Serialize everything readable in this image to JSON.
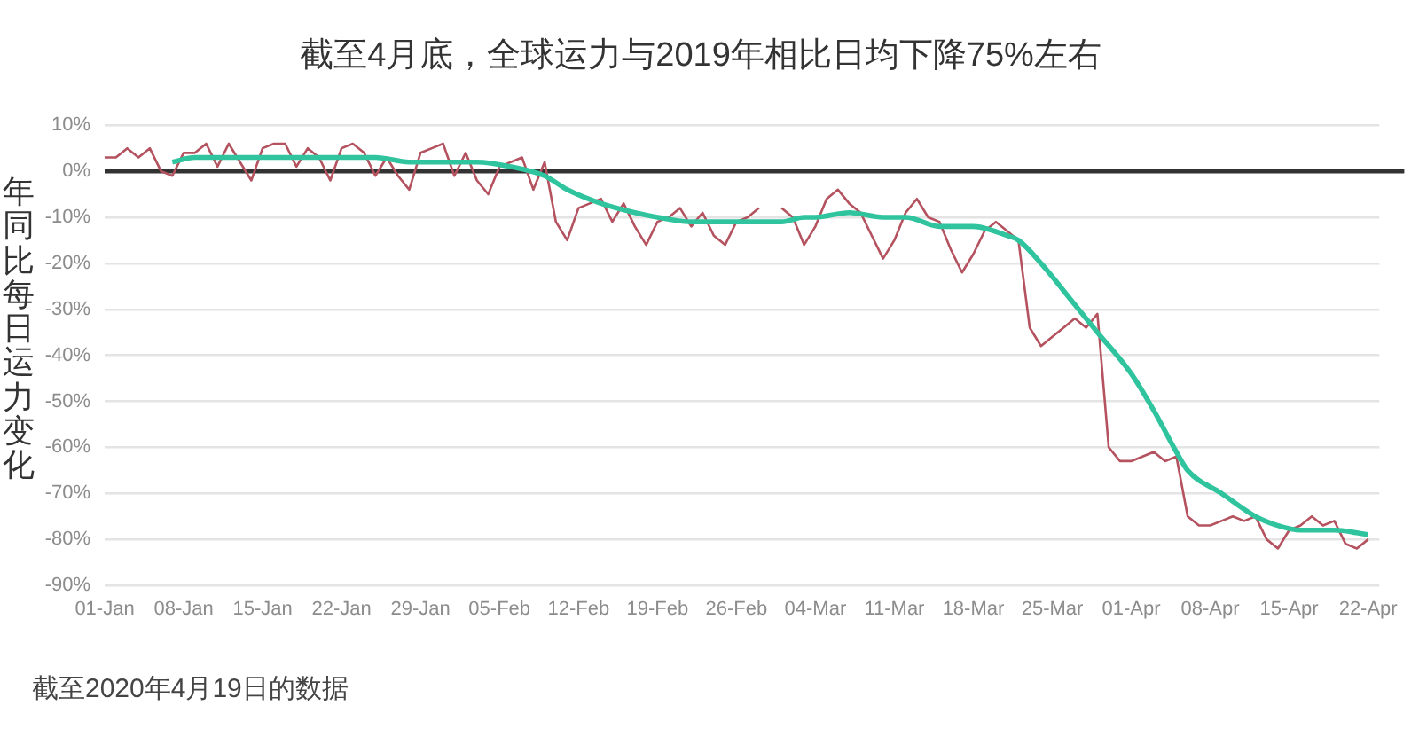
{
  "chart_data": {
    "type": "line",
    "title": "截至4月底，全球运力与2019年相比日均下降75%左右",
    "ylabel": "年同比每日运力变化",
    "annotations": [
      "截至2020年4月19日的数据"
    ],
    "x": [
      "--01-01",
      "--01-02",
      "--01-03",
      "--01-04",
      "--01-05",
      "--01-06",
      "--01-07",
      "--01-08",
      "--01-09",
      "--01-10",
      "--01-11",
      "--01-12",
      "--01-13",
      "--01-14",
      "--01-15",
      "--01-16",
      "--01-17",
      "--01-18",
      "--01-19",
      "--01-20",
      "--01-21",
      "--01-22",
      "--01-23",
      "--01-24",
      "--01-25",
      "--01-26",
      "--01-27",
      "--01-28",
      "--01-29",
      "--01-30",
      "--01-31",
      "--02-01",
      "--02-02",
      "--02-03",
      "--02-04",
      "--02-05",
      "--02-06",
      "--02-07",
      "--02-08",
      "--02-09",
      "--02-10",
      "--02-11",
      "--02-12",
      "--02-13",
      "--02-14",
      "--02-15",
      "--02-16",
      "--02-17",
      "--02-18",
      "--02-19",
      "--02-20",
      "--02-21",
      "--02-22",
      "--02-23",
      "--02-24",
      "--02-25",
      "--02-26",
      "--02-27",
      "--02-28",
      "--02-29",
      "--03-01",
      "--03-02",
      "--03-03",
      "--03-04",
      "--03-05",
      "--03-06",
      "--03-07",
      "--03-08",
      "--03-09",
      "--03-10",
      "--03-11",
      "--03-12",
      "--03-13",
      "--03-14",
      "--03-15",
      "--03-16",
      "--03-17",
      "--03-18",
      "--03-19",
      "--03-20",
      "--03-21",
      "--03-22",
      "--03-23",
      "--03-24",
      "--03-25",
      "--03-26",
      "--03-27",
      "--03-28",
      "--03-29",
      "--03-30",
      "--03-31",
      "--04-01",
      "--04-02",
      "--04-03",
      "--04-04",
      "--04-05",
      "--04-06",
      "--04-07",
      "--04-08",
      "--04-09",
      "--04-10",
      "--04-11",
      "--04-12",
      "--04-13",
      "--04-14",
      "--04-15",
      "--04-16",
      "--04-17",
      "--04-18",
      "--04-19",
      "--04-20",
      "--04-21",
      "--04-22"
    ],
    "series": [
      {
        "color": "#b4535f",
        "values": [
          3,
          3,
          5,
          3,
          5,
          0,
          -1,
          4,
          4,
          6,
          1,
          6,
          2,
          -2,
          5,
          6,
          6,
          1,
          5,
          3,
          -2,
          5,
          6,
          4,
          -1,
          3,
          -1,
          -4,
          4,
          5,
          6,
          -1,
          4,
          -2,
          -5,
          1,
          2,
          3,
          -4,
          2,
          -11,
          -15,
          -8,
          -7,
          -6,
          -11,
          -7,
          -12,
          -16,
          -11,
          -10,
          -8,
          -12,
          -9,
          -14,
          -16,
          -11,
          -10,
          -8,
          null,
          -8,
          -10,
          -16,
          -12,
          -6,
          -4,
          -7,
          -9,
          -14,
          -19,
          -15,
          -9,
          -6,
          -10,
          -11,
          -17,
          -22,
          -18,
          -13,
          -11,
          -13,
          -15,
          -34,
          -38,
          -36,
          -34,
          -32,
          -34,
          -31,
          -60,
          -63,
          -63,
          -62,
          -61,
          -63,
          -62,
          -75,
          -77,
          -77,
          -76,
          -75,
          -76,
          -75,
          -80,
          -82,
          -78,
          -77,
          -75,
          -77,
          -76,
          -81,
          -82,
          -80
        ]
      },
      {
        "color": "#2fc49e",
        "x": [
          "--01-07",
          "--01-09",
          "--01-12",
          "--01-16",
          "--01-21",
          "--01-25",
          "--01-28",
          "--01-31",
          "--02-03",
          "--02-06",
          "--02-09",
          "--02-11",
          "--02-14",
          "--02-17",
          "--02-19",
          "--02-22",
          "--02-26",
          "--03-01",
          "--03-03",
          "--03-04",
          "--03-07",
          "--03-10",
          "--03-12",
          "--03-15",
          "--03-18",
          "--03-21",
          "--03-22",
          "--03-24",
          "--03-27",
          "--03-29",
          "--04-01",
          "--04-03",
          "--04-05",
          "--04-06",
          "--04-09",
          "--04-12",
          "--04-14",
          "--04-16",
          "--04-19",
          "--04-22"
        ],
        "values": [
          2,
          3,
          3,
          3,
          3,
          3,
          2,
          2,
          2,
          1,
          -1,
          -4,
          -7,
          -9,
          -10,
          -11,
          -11,
          -11,
          -10,
          -10,
          -9,
          -10,
          -10,
          -12,
          -12,
          -14,
          -15,
          -20,
          -29,
          -35,
          -44,
          -52,
          -61,
          -65,
          -70,
          -75,
          -77,
          -78,
          -78,
          -79
        ]
      }
    ],
    "xlim": [
      "--01-01",
      "--04-23"
    ],
    "xticks": [
      {
        "value": "--01-01",
        "label": "01-Jan"
      },
      {
        "value": "--01-08",
        "label": "08-Jan"
      },
      {
        "value": "--01-15",
        "label": "15-Jan"
      },
      {
        "value": "--01-22",
        "label": "22-Jan"
      },
      {
        "value": "--01-29",
        "label": "29-Jan"
      },
      {
        "value": "--02-05",
        "label": "05-Feb"
      },
      {
        "value": "--02-12",
        "label": "12-Feb"
      },
      {
        "value": "--02-19",
        "label": "19-Feb"
      },
      {
        "value": "--02-26",
        "label": "26-Feb"
      },
      {
        "value": "--03-04",
        "label": "04-Mar"
      },
      {
        "value": "--03-11",
        "label": "11-Mar"
      },
      {
        "value": "--03-18",
        "label": "18-Mar"
      },
      {
        "value": "--03-25",
        "label": "25-Mar"
      },
      {
        "value": "--04-01",
        "label": "01-Apr"
      },
      {
        "value": "--04-08",
        "label": "08-Apr"
      },
      {
        "value": "--04-15",
        "label": "15-Apr"
      },
      {
        "value": "--04-22",
        "label": "22-Apr"
      }
    ],
    "ylim": [
      -90,
      10
    ],
    "yticks": [
      {
        "value": 10,
        "label": "10%"
      },
      {
        "value": 0,
        "label": "0%"
      },
      {
        "value": -10,
        "label": "-10%"
      },
      {
        "value": -20,
        "label": "-20%"
      },
      {
        "value": -30,
        "label": "-30%"
      },
      {
        "value": -40,
        "label": "-40%"
      },
      {
        "value": -50,
        "label": "-50%"
      },
      {
        "value": -60,
        "label": "-60%"
      },
      {
        "value": -70,
        "label": "-70%"
      },
      {
        "value": -80,
        "label": "-80%"
      },
      {
        "value": -90,
        "label": "-90%"
      }
    ],
    "grid": "y",
    "legend": false,
    "marker": "none",
    "ref_lines": [
      {
        "axis": "y",
        "value": 0,
        "color": "#333333"
      }
    ]
  }
}
